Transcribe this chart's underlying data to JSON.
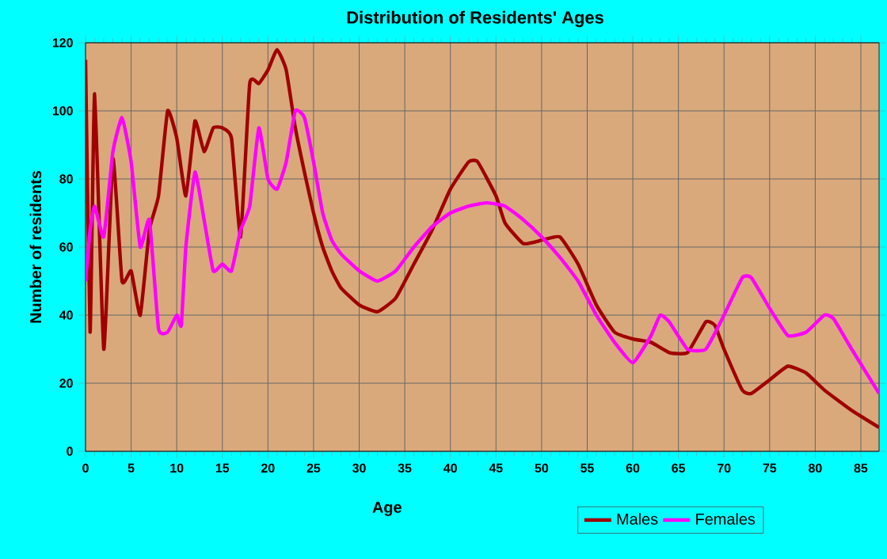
{
  "chart_data": {
    "type": "line",
    "title": "Distribution of Residents' Ages",
    "xlabel": "Age",
    "ylabel": "Number of residents",
    "xlim": [
      0,
      87
    ],
    "ylim": [
      0,
      120
    ],
    "xticks": [
      0,
      5,
      10,
      15,
      20,
      25,
      30,
      35,
      40,
      45,
      50,
      55,
      60,
      65,
      70,
      75,
      80,
      85
    ],
    "yticks": [
      0,
      20,
      40,
      60,
      80,
      100,
      120
    ],
    "grid": true,
    "legend": "bottom right",
    "series": [
      {
        "name": "Males",
        "color": "#a00000",
        "x": [
          0,
          0.5,
          1,
          2,
          3,
          4,
          5,
          6,
          7,
          8,
          9,
          10,
          11,
          12,
          13,
          14,
          15,
          16,
          17,
          18,
          19,
          20,
          21,
          22,
          23,
          24,
          25,
          26,
          27,
          28,
          30,
          32,
          34,
          36,
          38,
          40,
          42,
          43,
          45,
          46,
          48,
          50,
          52,
          54,
          56,
          58,
          60,
          62,
          64,
          66,
          68,
          69,
          70,
          72,
          73,
          75,
          77,
          79,
          81,
          84,
          87
        ],
        "values": [
          115,
          35,
          105,
          30,
          86,
          50,
          53,
          40,
          65,
          75,
          100,
          92,
          75,
          97,
          88,
          95,
          95,
          92,
          63,
          108,
          108,
          112,
          118,
          112,
          95,
          82,
          70,
          60,
          53,
          48,
          43,
          41,
          45,
          55,
          65,
          77,
          85,
          85,
          75,
          67,
          61,
          62,
          63,
          55,
          43,
          35,
          33,
          32,
          29,
          29,
          38,
          37,
          30,
          18,
          17,
          21,
          25,
          23,
          18,
          12,
          7
        ]
      },
      {
        "name": "Females",
        "color": "#ff00ff",
        "x": [
          0,
          0.5,
          1,
          2,
          3,
          4,
          5,
          6,
          7,
          8,
          9,
          10,
          10.5,
          11,
          12,
          13,
          14,
          15,
          16,
          17,
          18,
          19,
          20,
          21,
          22,
          23,
          24,
          25,
          26,
          27,
          28,
          30,
          32,
          34,
          36,
          38,
          40,
          42,
          44,
          46,
          48,
          50,
          52,
          54,
          56,
          58,
          60,
          62,
          63,
          64,
          66,
          68,
          70,
          72,
          73,
          75,
          77,
          79,
          81,
          82,
          84,
          87
        ],
        "values": [
          50,
          65,
          72,
          63,
          88,
          98,
          85,
          60,
          68,
          36,
          35,
          40,
          37,
          60,
          82,
          68,
          53,
          55,
          53,
          65,
          72,
          95,
          80,
          77,
          85,
          100,
          98,
          85,
          70,
          62,
          58,
          53,
          50,
          53,
          60,
          66,
          70,
          72,
          73,
          72,
          68,
          63,
          57,
          50,
          40,
          32,
          26,
          34,
          40,
          38,
          30,
          30,
          40,
          51,
          51,
          42,
          34,
          35,
          40,
          39,
          30,
          17
        ]
      }
    ]
  }
}
